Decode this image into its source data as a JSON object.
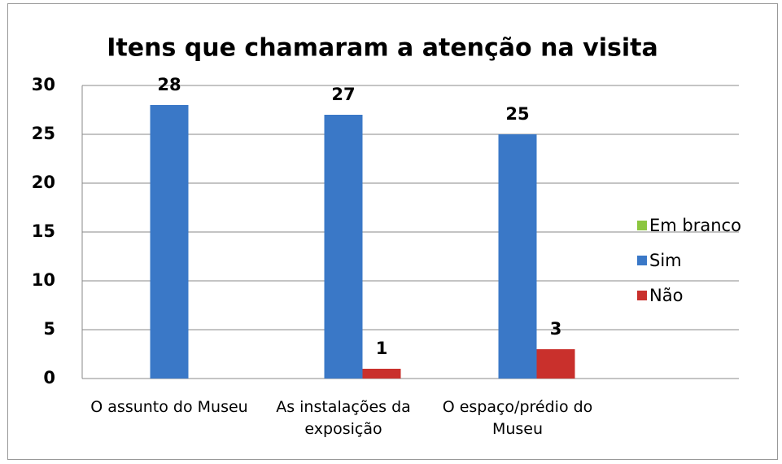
{
  "chart_data": {
    "type": "bar",
    "title": "Itens que chamaram a atenção na visita",
    "categories": [
      "O assunto do Museu",
      "As instalações da exposição",
      "O espaço/prédio do Museu"
    ],
    "series": [
      {
        "name": "Em branco",
        "color": "#8cc63f",
        "values": [
          null,
          null,
          null
        ]
      },
      {
        "name": "Sim",
        "color": "#3a78c7",
        "values": [
          28,
          27,
          25
        ]
      },
      {
        "name": "Não",
        "color": "#c9302c",
        "values": [
          null,
          1,
          3
        ]
      }
    ],
    "ylim": [
      0,
      30
    ],
    "yticks": [
      0,
      5,
      10,
      15,
      20,
      25,
      30
    ],
    "grid": true,
    "legend": "right"
  }
}
